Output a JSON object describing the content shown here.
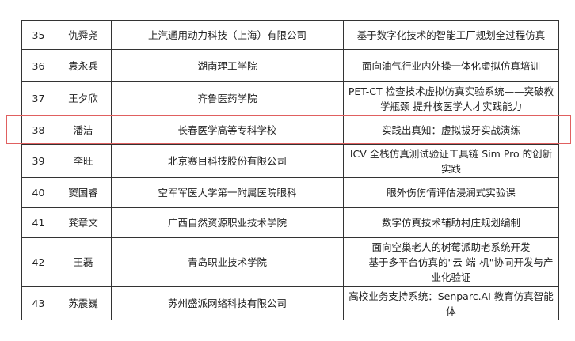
{
  "rows": [
    {
      "no": "35",
      "name": "仇舜尧",
      "org": "上汽通用动力科技（上海）有限公司",
      "project": "基于数字化技术的智能工厂规划全过程仿真"
    },
    {
      "no": "36",
      "name": "袁永兵",
      "org": "湖南理工学院",
      "project": "面向油气行业内外操一体化虚拟仿真培训"
    },
    {
      "no": "37",
      "name": "王夕欣",
      "org": "齐鲁医药学院",
      "project": "PET-CT 检查技术虚拟仿真实验系统——突破教学瓶颈 提升核医学人才实践能力"
    },
    {
      "no": "38",
      "name": "潘洁",
      "org": "长春医学高等专科学校",
      "project": "实践出真知：虚拟拔牙实战演练"
    },
    {
      "no": "39",
      "name": "李旺",
      "org": "北京赛目科技股份有限公司",
      "project": "ICV 全栈仿真测试验证工具链 Sim Pro 的创新实践"
    },
    {
      "no": "40",
      "name": "窦国睿",
      "org": "空军军医大学第一附属医院眼科",
      "project": "眼外伤伤情评估浸润式实验课"
    },
    {
      "no": "41",
      "name": "龚章文",
      "org": "广西自然资源职业技术学院",
      "project": "数字仿真技术辅助村庄规划编制"
    },
    {
      "no": "42",
      "name": "王磊",
      "org": "青岛职业技术学院",
      "project": "面向空巢老人的树莓派助老系统开发\n——基于多平台仿真的\"云-端-机\"协同开发与产业化验证"
    },
    {
      "no": "43",
      "name": "苏震巍",
      "org": "苏州盛派网络科技有限公司",
      "project": "高校业务支持系统：Senparc.AI 教育仿真智能体"
    }
  ],
  "highlight_color": "#e06060"
}
